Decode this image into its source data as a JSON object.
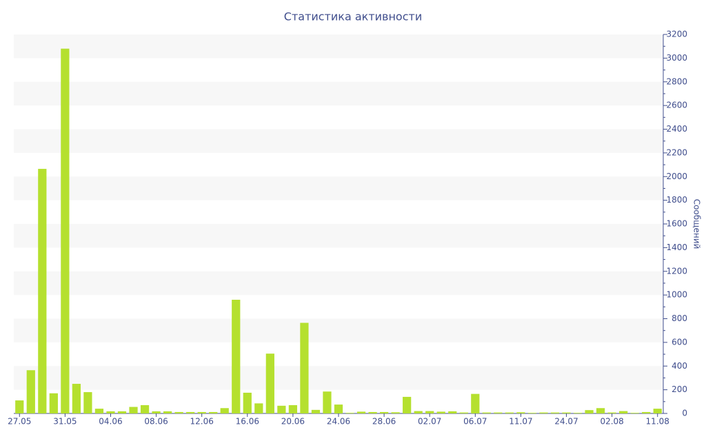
{
  "chart_data": {
    "type": "bar",
    "title": "Статистика активности",
    "y_axis_label": "Сообщений",
    "y_axis_side": "right",
    "alternate_bands": true,
    "color": "#b5e02f",
    "categories": [
      "27.05",
      null,
      null,
      null,
      "31.05",
      null,
      null,
      null,
      "04.06",
      null,
      null,
      null,
      "08.06",
      null,
      null,
      null,
      "12.06",
      null,
      null,
      null,
      "16.06",
      null,
      null,
      null,
      "20.06",
      null,
      null,
      null,
      "24.06",
      null,
      null,
      null,
      "28.06",
      null,
      null,
      null,
      "02.07",
      null,
      null,
      null,
      "06.07",
      null,
      null,
      null,
      "11.07",
      null,
      null,
      null,
      "24.07",
      null,
      null,
      null,
      "02.08",
      null,
      null,
      null,
      "11.08"
    ],
    "values": [
      110,
      365,
      2065,
      170,
      3080,
      250,
      180,
      40,
      18,
      18,
      55,
      70,
      18,
      18,
      12,
      12,
      12,
      12,
      45,
      960,
      175,
      85,
      505,
      65,
      70,
      765,
      30,
      185,
      75,
      5,
      15,
      12,
      12,
      10,
      140,
      20,
      20,
      15,
      18,
      8,
      165,
      8,
      8,
      8,
      10,
      5,
      8,
      8,
      8,
      5,
      28,
      45,
      8,
      20,
      5,
      12,
      40
    ],
    "ylim": [
      0,
      3200
    ],
    "yticks": [
      0,
      200,
      400,
      600,
      800,
      1000,
      1200,
      1400,
      1600,
      1800,
      2000,
      2200,
      2400,
      2600,
      2800,
      3000,
      3200
    ]
  }
}
